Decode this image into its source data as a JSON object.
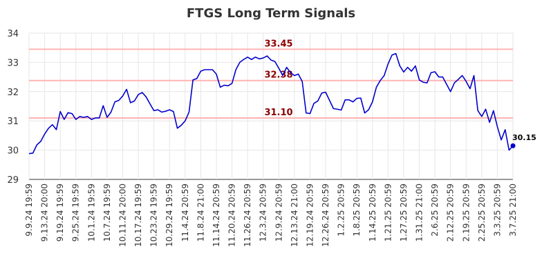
{
  "chart_data": {
    "type": "line",
    "title": "FTGS Long Term Signals",
    "xlabel": "",
    "ylabel": "",
    "ylim": [
      29,
      34
    ],
    "yticks": [
      "29",
      "30",
      "31",
      "32",
      "33",
      "34"
    ],
    "grid": true,
    "line_color": "#0000cc",
    "level_color": "#ffb3b3",
    "level_label_color": "#8b0000",
    "x_tick_labels": [
      "9.9.24 19:59",
      "9.13.24 20:00",
      "9.19.24 19:59",
      "9.25.24 19:59",
      "10.1.24 19:59",
      "10.7.24 19:59",
      "10.11.24 20:00",
      "10.17.24 19:59",
      "10.23.24 19:59",
      "10.29.24 19:59",
      "11.4.24 20:59",
      "11.8.24 21:00",
      "11.14.24 20:59",
      "11.20.24 20:59",
      "11.26.24 20:59",
      "12.3.24 20:59",
      "12.9.24 20:59",
      "12.13.24 21:00",
      "12.19.24 20:59",
      "12.26.24 20:59",
      "1.2.25 20:59",
      "1.8.25 20:59",
      "1.14.25 20:59",
      "1.21.25 20:59",
      "1.27.25 20:59",
      "1.31.25 21:00",
      "2.6.25 20:59",
      "2.12.25 20:59",
      "2.19.25 20:59",
      "2.25.25 20:59",
      "3.3.25 20:59",
      "3.7.25 21:00"
    ],
    "levels": [
      {
        "value": 33.45,
        "label": "33.45"
      },
      {
        "value": 32.38,
        "label": "32.38"
      },
      {
        "value": 31.1,
        "label": "31.10"
      }
    ],
    "last_value_label": "30.15",
    "series": [
      {
        "values": [
          29.88,
          29.9,
          30.18,
          30.3,
          30.55,
          30.75,
          30.87,
          30.7,
          31.32,
          31.05,
          31.28,
          31.25,
          31.05,
          31.15,
          31.12,
          31.15,
          31.05,
          31.1,
          31.1,
          31.52,
          31.12,
          31.3,
          31.65,
          31.7,
          31.85,
          32.08,
          31.62,
          31.68,
          31.9,
          31.97,
          31.82,
          31.58,
          31.35,
          31.38,
          31.3,
          31.33,
          31.38,
          31.32,
          30.75,
          30.85,
          31.0,
          31.3,
          32.4,
          32.45,
          32.7,
          32.75,
          32.75,
          32.75,
          32.6,
          32.15,
          32.22,
          32.2,
          32.28,
          32.75,
          33.0,
          33.1,
          33.18,
          33.1,
          33.18,
          33.12,
          33.15,
          33.22,
          33.08,
          33.03,
          32.8,
          32.55,
          32.83,
          32.65,
          32.55,
          32.6,
          32.35,
          31.27,
          31.25,
          31.6,
          31.68,
          31.95,
          31.98,
          31.7,
          31.42,
          31.4,
          31.37,
          31.72,
          31.72,
          31.65,
          31.77,
          31.78,
          31.27,
          31.38,
          31.65,
          32.15,
          32.38,
          32.55,
          32.95,
          33.25,
          33.3,
          32.88,
          32.67,
          32.83,
          32.7,
          32.88,
          32.4,
          32.32,
          32.3,
          32.65,
          32.68,
          32.5,
          32.5,
          32.25,
          32.0,
          32.3,
          32.42,
          32.55,
          32.35,
          32.1,
          32.55,
          31.35,
          31.15,
          31.4,
          30.95,
          31.35,
          30.8,
          30.35,
          30.7,
          30.0,
          30.15
        ]
      }
    ]
  }
}
